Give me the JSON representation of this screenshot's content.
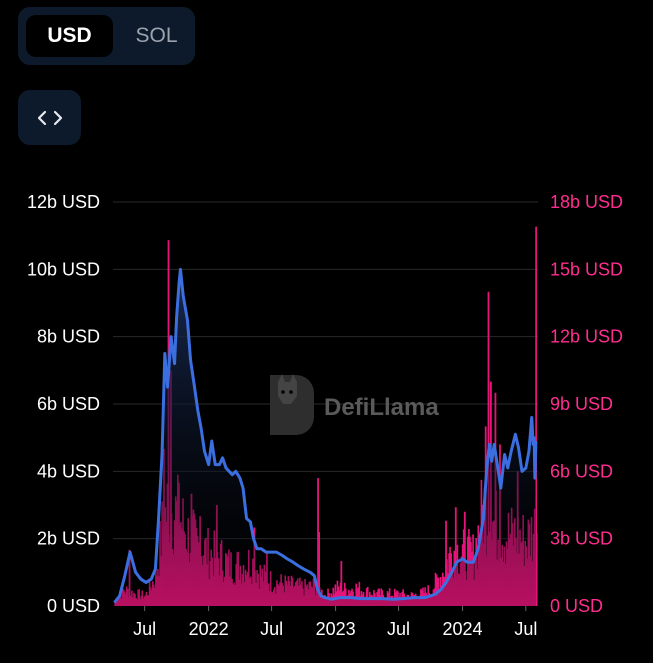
{
  "currency_toggle": {
    "options": [
      "USD",
      "SOL"
    ],
    "selected": "USD"
  },
  "embed_button": {
    "icon": "code-icon"
  },
  "watermark": "DefiLlama",
  "colors": {
    "line": "#3b6fe0",
    "bars": "#e6147a",
    "right_axis": "#ff2d8f",
    "grid": "#2a2a2a",
    "area_top": "#16264a"
  },
  "chart_data": {
    "type": "line+bar",
    "x_start": "2021-04",
    "x_end": "2024-08",
    "x_ticks": [
      "Jul",
      "2022",
      "Jul",
      "2023",
      "Jul",
      "2024",
      "Jul"
    ],
    "left_axis": {
      "ticks": [
        "0 USD",
        "2b USD",
        "4b USD",
        "6b USD",
        "8b USD",
        "10b USD",
        "12b USD"
      ],
      "ylim": [
        0,
        12
      ]
    },
    "right_axis": {
      "ticks": [
        "0 USD",
        "3b USD",
        "6b USD",
        "9b USD",
        "12b USD",
        "15b USD",
        "18b USD"
      ],
      "ylim": [
        0,
        18
      ]
    },
    "series": [
      {
        "kind": "line",
        "axis": "left",
        "points": [
          [
            "2021-04-05",
            0.1
          ],
          [
            "2021-04-20",
            0.3
          ],
          [
            "2021-05-05",
            0.9
          ],
          [
            "2021-05-20",
            1.6
          ],
          [
            "2021-06-05",
            1.0
          ],
          [
            "2021-06-20",
            0.8
          ],
          [
            "2021-07-05",
            0.7
          ],
          [
            "2021-07-20",
            0.8
          ],
          [
            "2021-08-01",
            1.1
          ],
          [
            "2021-08-10",
            2.6
          ],
          [
            "2021-08-20",
            4.5
          ],
          [
            "2021-08-28",
            7.5
          ],
          [
            "2021-09-05",
            6.5
          ],
          [
            "2021-09-15",
            8.0
          ],
          [
            "2021-09-25",
            7.2
          ],
          [
            "2021-10-01",
            8.6
          ],
          [
            "2021-10-08",
            9.6
          ],
          [
            "2021-10-12",
            10.0
          ],
          [
            "2021-10-20",
            9.2
          ],
          [
            "2021-11-01",
            8.5
          ],
          [
            "2021-11-10",
            7.3
          ],
          [
            "2021-11-20",
            6.6
          ],
          [
            "2021-12-01",
            5.8
          ],
          [
            "2021-12-10",
            5.3
          ],
          [
            "2021-12-20",
            4.6
          ],
          [
            "2022-01-01",
            4.2
          ],
          [
            "2022-01-10",
            4.9
          ],
          [
            "2022-01-20",
            4.2
          ],
          [
            "2022-02-01",
            4.2
          ],
          [
            "2022-02-10",
            4.4
          ],
          [
            "2022-02-20",
            4.1
          ],
          [
            "2022-03-01",
            4.0
          ],
          [
            "2022-03-10",
            3.9
          ],
          [
            "2022-03-20",
            4.0
          ],
          [
            "2022-04-01",
            3.8
          ],
          [
            "2022-04-10",
            3.5
          ],
          [
            "2022-04-20",
            2.6
          ],
          [
            "2022-05-01",
            2.5
          ],
          [
            "2022-05-10",
            2.0
          ],
          [
            "2022-05-20",
            1.7
          ],
          [
            "2022-06-01",
            1.7
          ],
          [
            "2022-06-15",
            1.6
          ],
          [
            "2022-07-01",
            1.6
          ],
          [
            "2022-07-15",
            1.6
          ],
          [
            "2022-08-01",
            1.5
          ],
          [
            "2022-08-15",
            1.4
          ],
          [
            "2022-09-01",
            1.3
          ],
          [
            "2022-09-15",
            1.2
          ],
          [
            "2022-10-01",
            1.1
          ],
          [
            "2022-10-20",
            1.0
          ],
          [
            "2022-11-01",
            0.9
          ],
          [
            "2022-11-10",
            0.5
          ],
          [
            "2022-11-20",
            0.3
          ],
          [
            "2022-12-01",
            0.25
          ],
          [
            "2022-12-20",
            0.2
          ],
          [
            "2023-01-15",
            0.25
          ],
          [
            "2023-02-15",
            0.25
          ],
          [
            "2023-03-15",
            0.22
          ],
          [
            "2023-04-15",
            0.22
          ],
          [
            "2023-05-15",
            0.22
          ],
          [
            "2023-06-15",
            0.2
          ],
          [
            "2023-07-15",
            0.22
          ],
          [
            "2023-08-15",
            0.25
          ],
          [
            "2023-09-15",
            0.25
          ],
          [
            "2023-10-01",
            0.3
          ],
          [
            "2023-10-15",
            0.35
          ],
          [
            "2023-11-01",
            0.5
          ],
          [
            "2023-11-15",
            0.7
          ],
          [
            "2023-12-01",
            1.0
          ],
          [
            "2023-12-15",
            1.3
          ],
          [
            "2024-01-01",
            1.4
          ],
          [
            "2024-01-15",
            1.3
          ],
          [
            "2024-02-01",
            1.3
          ],
          [
            "2024-02-15",
            1.7
          ],
          [
            "2024-03-01",
            2.6
          ],
          [
            "2024-03-10",
            4.0
          ],
          [
            "2024-03-18",
            4.8
          ],
          [
            "2024-03-25",
            4.3
          ],
          [
            "2024-04-01",
            4.8
          ],
          [
            "2024-04-10",
            4.2
          ],
          [
            "2024-04-20",
            3.5
          ],
          [
            "2024-05-01",
            4.5
          ],
          [
            "2024-05-10",
            4.1
          ],
          [
            "2024-05-20",
            4.6
          ],
          [
            "2024-06-01",
            5.1
          ],
          [
            "2024-06-10",
            4.7
          ],
          [
            "2024-06-20",
            4.0
          ],
          [
            "2024-07-01",
            4.1
          ],
          [
            "2024-07-10",
            4.6
          ],
          [
            "2024-07-18",
            5.6
          ],
          [
            "2024-07-22",
            4.8
          ],
          [
            "2024-07-25",
            5.0
          ],
          [
            "2024-07-27",
            3.8
          ],
          [
            "2024-07-30",
            4.9
          ]
        ]
      },
      {
        "kind": "bar",
        "axis": "right",
        "daily_volume_envelope": [
          [
            "2021-04-05",
            0.3
          ],
          [
            "2021-05-01",
            0.8
          ],
          [
            "2021-06-01",
            0.6
          ],
          [
            "2021-07-01",
            0.5
          ],
          [
            "2021-08-01",
            1.5
          ],
          [
            "2021-08-20",
            4.0
          ],
          [
            "2021-09-05",
            5.0
          ],
          [
            "2021-10-01",
            4.5
          ],
          [
            "2021-11-01",
            3.5
          ],
          [
            "2021-12-01",
            3.0
          ],
          [
            "2022-01-01",
            2.6
          ],
          [
            "2022-02-01",
            2.4
          ],
          [
            "2022-03-01",
            2.0
          ],
          [
            "2022-04-01",
            2.0
          ],
          [
            "2022-05-01",
            2.2
          ],
          [
            "2022-06-01",
            1.5
          ],
          [
            "2022-07-01",
            1.2
          ],
          [
            "2022-08-01",
            1.1
          ],
          [
            "2022-09-01",
            1.0
          ],
          [
            "2022-10-01",
            0.9
          ],
          [
            "2022-11-01",
            1.0
          ],
          [
            "2022-12-01",
            0.5
          ],
          [
            "2023-01-01",
            0.9
          ],
          [
            "2023-02-01",
            0.8
          ],
          [
            "2023-03-01",
            0.9
          ],
          [
            "2023-04-01",
            0.7
          ],
          [
            "2023-05-01",
            0.6
          ],
          [
            "2023-06-01",
            0.6
          ],
          [
            "2023-07-01",
            0.6
          ],
          [
            "2023-08-01",
            0.5
          ],
          [
            "2023-09-01",
            0.6
          ],
          [
            "2023-10-01",
            0.8
          ],
          [
            "2023-11-01",
            1.6
          ],
          [
            "2023-12-01",
            2.8
          ],
          [
            "2024-01-01",
            2.6
          ],
          [
            "2024-02-01",
            2.5
          ],
          [
            "2024-03-01",
            5.0
          ],
          [
            "2024-04-01",
            4.0
          ],
          [
            "2024-05-01",
            3.5
          ],
          [
            "2024-06-01",
            3.5
          ],
          [
            "2024-07-01",
            3.2
          ],
          [
            "2024-07-30",
            4.0
          ]
        ],
        "spikes": [
          [
            "2021-05-16",
            2.5
          ],
          [
            "2021-08-23",
            7.0
          ],
          [
            "2021-09-05",
            16.3
          ],
          [
            "2021-09-12",
            10.5
          ],
          [
            "2021-10-05",
            5.5
          ],
          [
            "2021-11-10",
            5.0
          ],
          [
            "2021-12-05",
            4.0
          ],
          [
            "2022-01-22",
            4.5
          ],
          [
            "2022-05-10",
            3.5
          ],
          [
            "2022-06-15",
            2.4
          ],
          [
            "2022-11-09",
            5.7
          ],
          [
            "2022-11-12",
            3.3
          ],
          [
            "2023-01-15",
            2.0
          ],
          [
            "2023-11-12",
            3.8
          ],
          [
            "2023-12-10",
            4.4
          ],
          [
            "2024-01-05",
            4.2
          ],
          [
            "2024-03-05",
            8.0
          ],
          [
            "2024-03-13",
            14.0
          ],
          [
            "2024-03-20",
            10.0
          ],
          [
            "2024-04-02",
            9.5
          ],
          [
            "2024-04-15",
            7.2
          ],
          [
            "2024-06-05",
            6.0
          ],
          [
            "2024-07-28",
            16.9
          ]
        ]
      }
    ]
  }
}
